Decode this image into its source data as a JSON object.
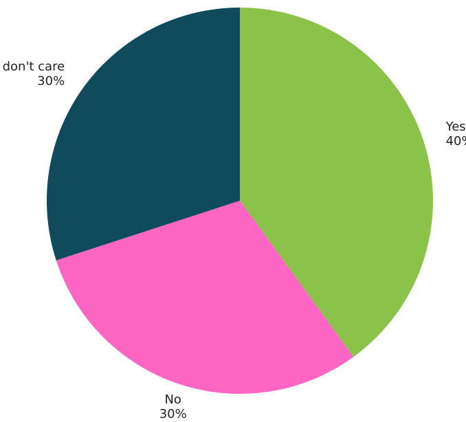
{
  "chart_data": {
    "type": "pie",
    "title": "",
    "slices": [
      {
        "label": "Yes",
        "value": 40,
        "value_label": "40%",
        "color": "#8bc34a"
      },
      {
        "label": "No",
        "value": 30,
        "value_label": "30%",
        "color": "#ff66c4"
      },
      {
        "label": "I don't care",
        "value": 30,
        "value_label": "30%",
        "color": "#0f4b5c"
      }
    ],
    "start_angle": "12 o'clock",
    "direction": "clockwise",
    "legend": "none",
    "labels_position": "outside"
  }
}
